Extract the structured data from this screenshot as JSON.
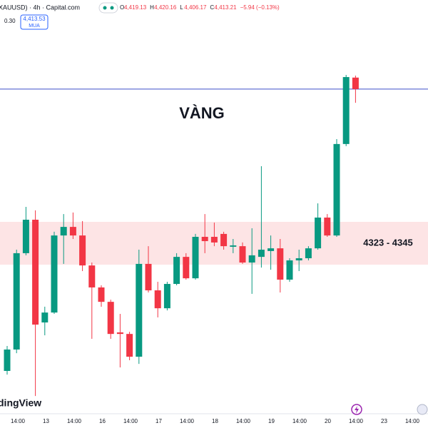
{
  "chart_data": {
    "type": "candlestick",
    "title": "VÀNG",
    "symbol": "XAUUSD) · 4h · Capital.com",
    "ohlc_header": [
      {
        "label": "O",
        "value": "4,419.13"
      },
      {
        "label": "H",
        "value": "4,420.16"
      },
      {
        "label": "L",
        "value": "4,406.17"
      },
      {
        "label": "C",
        "value": "4,413.21"
      }
    ],
    "change": "−5.94 (−0.13%)",
    "spread": "0.30",
    "buy_price": "4,413.53",
    "buy_label": "MUA",
    "watermark": "dingView",
    "open": [
      4268.4,
      4279.4,
      4328.9,
      4346.1,
      4293.3,
      4298.4,
      4338.0,
      4342.4,
      4338.0,
      4322.6,
      4311.3,
      4303.9,
      4288.2,
      4287.4,
      4275.7,
      4323.4,
      4309.8,
      4300.6,
      4313.1,
      4327.0,
      4316.0,
      4337.3,
      4337.3,
      4338.8,
      4332.2,
      4332.5,
      4324.1,
      4327.0,
      4330.0,
      4331.4,
      4315.3,
      4325.2,
      4326.3,
      4331.4,
      4347.2,
      4338.0,
      4385.0,
      4419.13
    ],
    "high": [
      4281.2,
      4330.7,
      4352.7,
      4350.9,
      4301.4,
      4339.9,
      4349.0,
      4349.8,
      4345.4,
      4324.1,
      4312.4,
      4305.0,
      4297.7,
      4288.5,
      4330.7,
      4332.5,
      4314.2,
      4314.2,
      4328.9,
      4328.9,
      4338.8,
      4349.0,
      4344.6,
      4339.9,
      4336.2,
      4334.4,
      4341.7,
      4373.6,
      4338.0,
      4336.2,
      4326.3,
      4330.7,
      4332.5,
      4354.5,
      4349.0,
      4387.5,
      4420.5,
      4420.16
    ],
    "low": [
      4266.5,
      4277.5,
      4327.8,
      4255.5,
      4286.7,
      4297.7,
      4323.4,
      4336.2,
      4319.7,
      4284.9,
      4301.4,
      4284.9,
      4270.2,
      4273.9,
      4272.0,
      4308.7,
      4295.9,
      4299.5,
      4312.4,
      4315.3,
      4315.3,
      4328.9,
      4332.5,
      4330.7,
      4328.9,
      4323.4,
      4308.0,
      4321.5,
      4320.4,
      4308.7,
      4314.2,
      4319.7,
      4325.2,
      4330.7,
      4337.3,
      4337.3,
      4383.9,
      4406.17
    ],
    "close": [
      4279.4,
      4328.9,
      4346.1,
      4292.2,
      4298.4,
      4338.0,
      4342.4,
      4338.0,
      4322.6,
      4311.3,
      4303.9,
      4287.4,
      4287.4,
      4275.7,
      4323.4,
      4309.8,
      4300.6,
      4313.1,
      4327.0,
      4316.0,
      4337.3,
      4335.1,
      4334.4,
      4332.5,
      4332.9,
      4324.1,
      4327.8,
      4330.7,
      4331.4,
      4315.3,
      4325.2,
      4326.3,
      4331.4,
      4347.2,
      4338.0,
      4385.0,
      4419.4,
      4413.21
    ],
    "up_color": "#089981",
    "down_color": "#f23645",
    "zone": {
      "low": 4323,
      "high": 4345,
      "label": "4323 - 4345",
      "color": "#fde4e5"
    },
    "price_line_color": "#3d4fc9",
    "ylim": [
      4246.4,
      4459.0
    ],
    "x_labels": [
      "14:00",
      "13",
      "14:00",
      "16",
      "14:00",
      "17",
      "14:00",
      "18",
      "14:00",
      "19",
      "14:00",
      "20",
      "14:00",
      "23",
      "14:00"
    ]
  }
}
